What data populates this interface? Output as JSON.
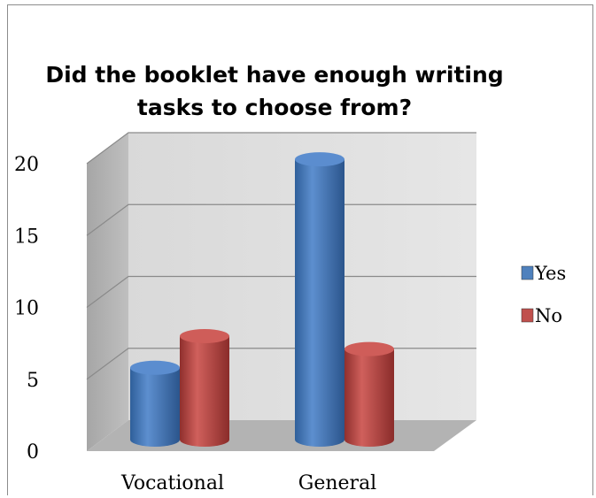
{
  "chart_data": {
    "type": "bar",
    "title": "Did the booklet have enough writing tasks to choose from?",
    "categories": [
      "Vocational",
      "General"
    ],
    "series": [
      {
        "name": "Yes",
        "values": [
          5,
          19.5
        ],
        "color": "#4f81bd"
      },
      {
        "name": "No",
        "values": [
          7.2,
          6.3
        ],
        "color": "#c0504d"
      }
    ],
    "ylim": [
      0,
      20
    ],
    "yticks": [
      0,
      5,
      10,
      15,
      20
    ],
    "grid": true,
    "legend": "right",
    "style": "3d-cylinder"
  }
}
